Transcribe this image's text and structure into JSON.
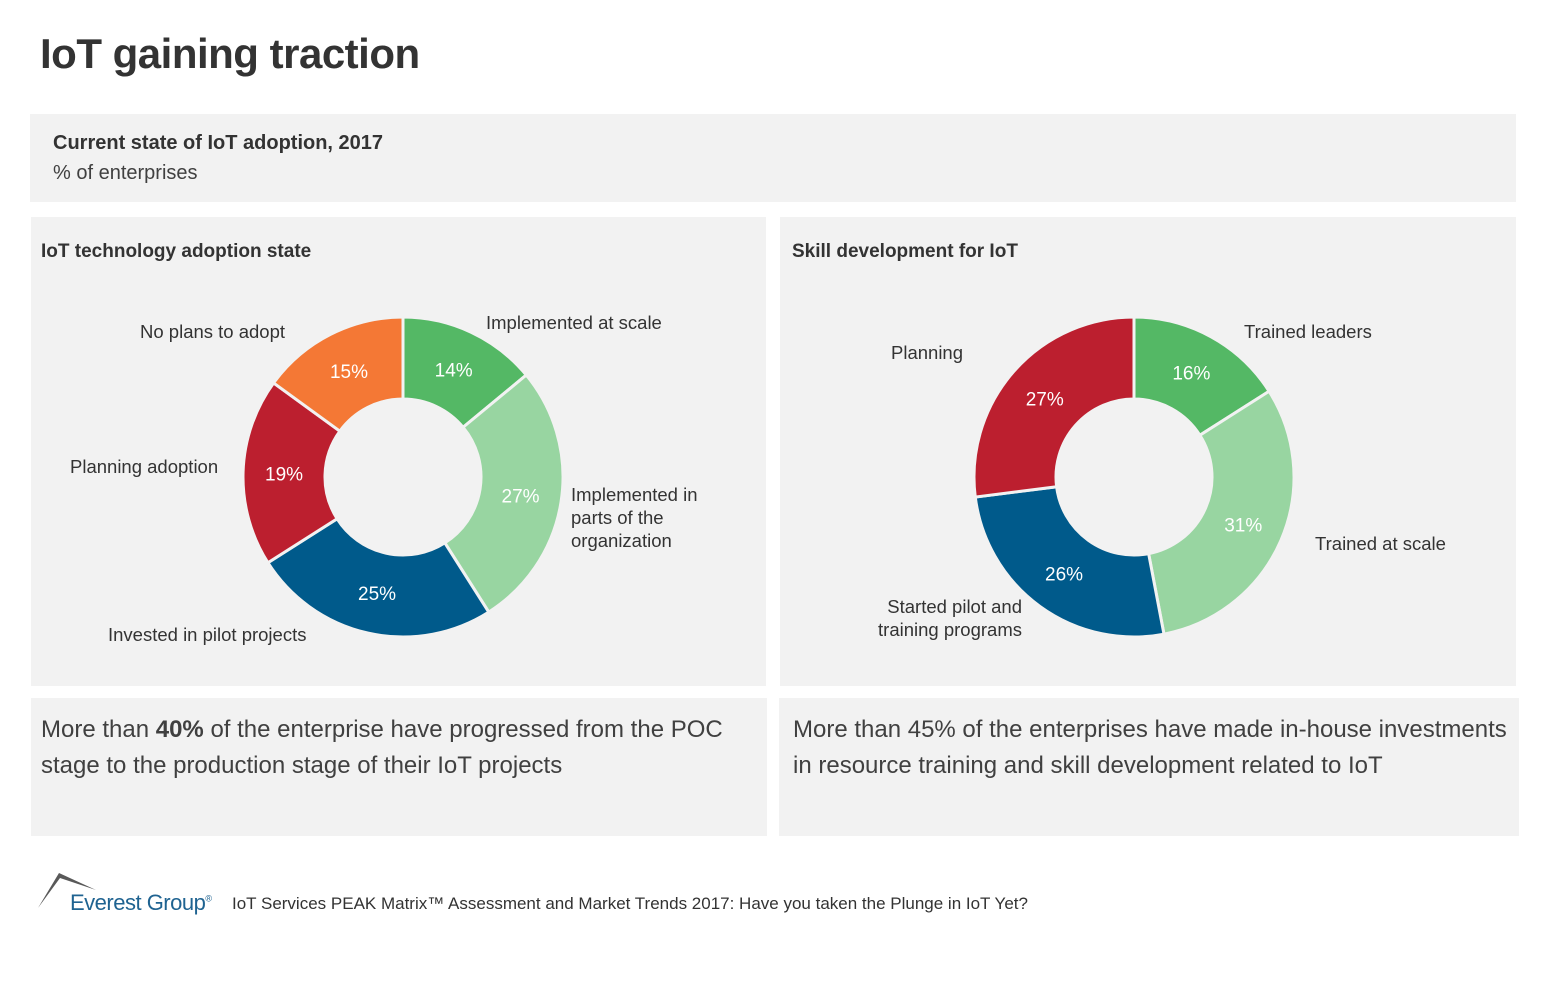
{
  "title": "IoT gaining traction",
  "header": {
    "title": "Current state of IoT adoption, 2017",
    "subtitle": "% of enterprises"
  },
  "chart_data": [
    {
      "type": "pie",
      "title": "IoT technology adoption state",
      "donut": true,
      "direction": "clockwise from top",
      "slices": [
        {
          "label": "Implemented at scale",
          "value": 14,
          "display": "14%",
          "color": "#54b865"
        },
        {
          "label": "Implemented in parts of the organization",
          "value": 27,
          "display": "27%",
          "color": "#98d5a1"
        },
        {
          "label": "Invested in pilot projects",
          "value": 25,
          "display": "25%",
          "color": "#005a8b"
        },
        {
          "label": "Planning adoption",
          "value": 19,
          "display": "19%",
          "color": "#bc1f2f"
        },
        {
          "label": "No plans to adopt",
          "value": 15,
          "display": "15%",
          "color": "#f47835"
        }
      ]
    },
    {
      "type": "pie",
      "title": "Skill development for IoT",
      "donut": true,
      "direction": "clockwise from top",
      "slices": [
        {
          "label": "Trained leaders",
          "value": 16,
          "display": "16%",
          "color": "#54b865"
        },
        {
          "label": "Trained at scale",
          "value": 31,
          "display": "31%",
          "color": "#98d5a1"
        },
        {
          "label": "Started pilot and training programs",
          "value": 26,
          "display": "26%",
          "color": "#005a8b"
        },
        {
          "label": "Planning",
          "value": 27,
          "display": "27%",
          "color": "#bc1f2f"
        }
      ]
    }
  ],
  "labels": {
    "c1": [
      "Implemented at scale",
      "Implemented in\nparts of the\norganization",
      "Invested in pilot projects",
      "Planning adoption",
      "No plans to adopt"
    ],
    "c2": [
      "Trained leaders",
      "Trained at scale",
      "Started pilot and\ntraining programs",
      "Planning"
    ]
  },
  "notes": {
    "left_pre": "More than ",
    "left_bold": "40%",
    "left_post": " of the enterprise have progressed from the POC stage to the production stage of their IoT projects",
    "right": "More than 45% of the enterprises have made in-house investments in resource training and skill development related to IoT"
  },
  "footer": {
    "logo": "Everest Group",
    "registered": "®",
    "source": "IoT Services PEAK Matrix™ Assessment and Market Trends 2017: Have you taken the Plunge in IoT Yet?"
  }
}
